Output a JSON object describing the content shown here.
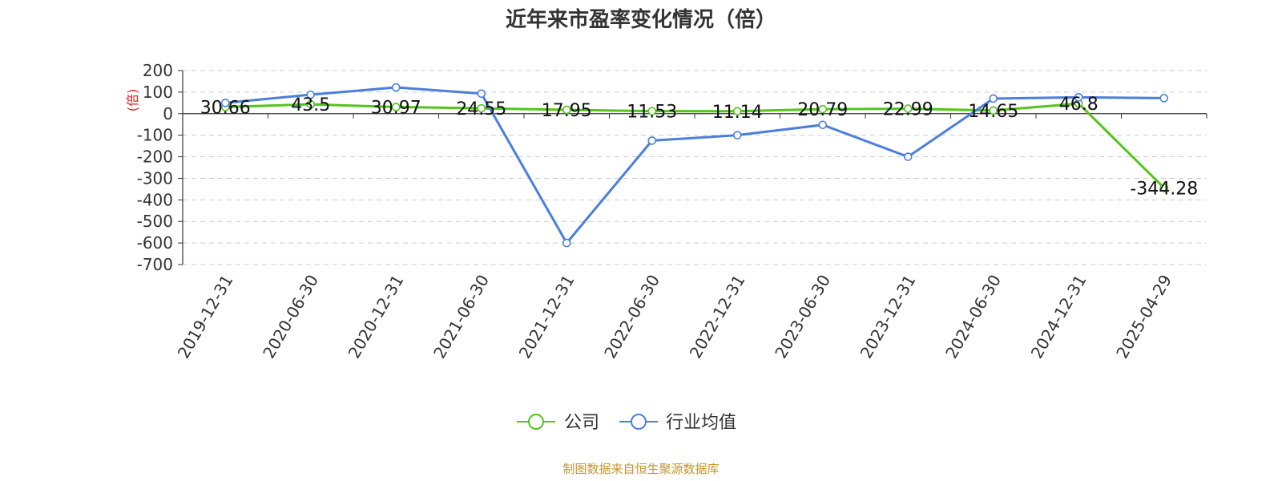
{
  "chart_data": {
    "type": "line",
    "title": "近年来市盈率变化情况（倍）",
    "ylabel": "(倍)",
    "xlabel": "",
    "ylim": [
      -700,
      200
    ],
    "yticks": [
      200,
      100,
      0,
      -100,
      -200,
      -300,
      -400,
      -500,
      -600,
      -700
    ],
    "grid": true,
    "legend_position": "bottom-center",
    "categories": [
      "2019-12-31",
      "2020-06-30",
      "2020-12-31",
      "2021-06-30",
      "2021-12-31",
      "2022-06-30",
      "2022-12-31",
      "2023-06-30",
      "2023-12-31",
      "2024-06-30",
      "2024-12-31",
      "2025-04-29"
    ],
    "series": [
      {
        "name": "公司",
        "color": "#52c41a",
        "values": [
          30.66,
          43.5,
          30.97,
          24.55,
          17.95,
          11.53,
          11.14,
          20.79,
          22.99,
          14.65,
          46.8,
          -344.28
        ],
        "labels": [
          "30.66",
          "43.5",
          "30.97",
          "24.55",
          "17.95",
          "11.53",
          "11.14",
          "20.79",
          "22.99",
          "14.65",
          "46.8",
          "-344.28"
        ]
      },
      {
        "name": "行业均值",
        "color": "#4a7fdc",
        "values": [
          50,
          88,
          122,
          93,
          -600,
          -125,
          -100,
          -52,
          -200,
          70,
          76,
          72
        ]
      }
    ],
    "source": "制图数据来自恒生聚源数据库"
  }
}
